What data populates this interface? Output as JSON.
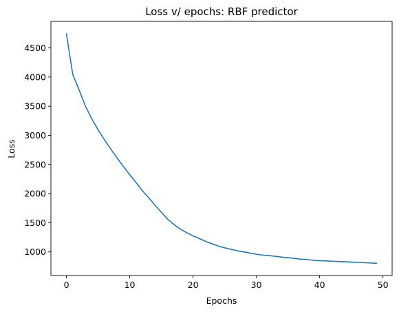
{
  "chart_data": {
    "type": "line",
    "title": "Loss v/ epochs: RBF predictor",
    "xlabel": "Epochs",
    "ylabel": "Loss",
    "xlim": [
      -2.45,
      51.45
    ],
    "ylim": [
      595,
      4955
    ],
    "xticks": [
      0,
      10,
      20,
      30,
      40,
      50
    ],
    "yticks": [
      1000,
      1500,
      2000,
      2500,
      3000,
      3500,
      4000,
      4500
    ],
    "grid": false,
    "series": [
      {
        "color": "#1f77b4",
        "x": [
          0,
          1,
          2,
          3,
          4,
          5,
          6,
          7,
          8,
          9,
          10,
          11,
          12,
          13,
          14,
          15,
          16,
          17,
          18,
          19,
          20,
          21,
          22,
          23,
          24,
          25,
          26,
          27,
          28,
          29,
          30,
          31,
          32,
          33,
          34,
          35,
          36,
          37,
          38,
          39,
          40,
          41,
          42,
          43,
          44,
          45,
          46,
          47,
          48,
          49
        ],
        "y": [
          4740,
          4045,
          3780,
          3500,
          3285,
          3095,
          2925,
          2765,
          2610,
          2465,
          2325,
          2190,
          2050,
          1930,
          1800,
          1680,
          1560,
          1470,
          1390,
          1330,
          1275,
          1230,
          1180,
          1140,
          1100,
          1070,
          1045,
          1020,
          1000,
          980,
          960,
          945,
          935,
          925,
          910,
          900,
          890,
          875,
          870,
          855,
          850,
          845,
          840,
          835,
          830,
          825,
          822,
          815,
          810,
          805
        ]
      }
    ]
  }
}
